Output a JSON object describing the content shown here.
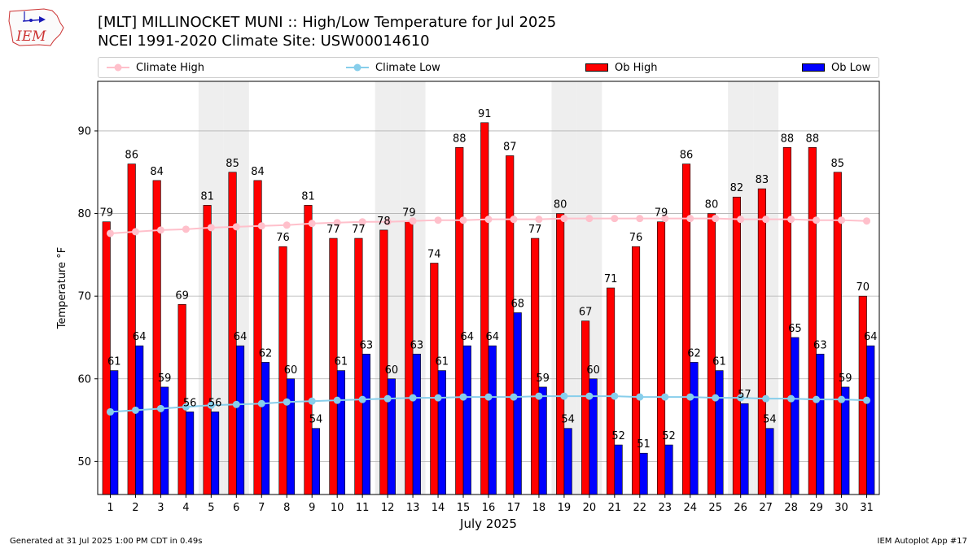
{
  "header": {
    "title_line1": "[MLT] MILLINOCKET MUNI :: High/Low Temperature for Jul 2025",
    "title_line2": "NCEI 1991-2020 Climate Site: USW00014610",
    "logo_text": "IEM"
  },
  "legend": {
    "items": [
      {
        "label": "Climate High",
        "kind": "line",
        "color": "#ffc0cb"
      },
      {
        "label": "Climate Low",
        "kind": "line",
        "color": "#87ceeb"
      },
      {
        "label": "Ob High",
        "kind": "bar",
        "color": "#ff0000"
      },
      {
        "label": "Ob Low",
        "kind": "bar",
        "color": "#0000ff"
      }
    ],
    "placement": "top"
  },
  "chart_data": {
    "type": "bar",
    "title": "[MLT] MILLINOCKET MUNI :: High/Low Temperature for Jul 2025",
    "subtitle": "NCEI 1991-2020 Climate Site: USW00014610",
    "xlabel": "July 2025",
    "ylabel": "Temperature °F",
    "categories": [
      "1",
      "2",
      "3",
      "4",
      "5",
      "6",
      "7",
      "8",
      "9",
      "10",
      "11",
      "12",
      "13",
      "14",
      "15",
      "16",
      "17",
      "18",
      "19",
      "20",
      "21",
      "22",
      "23",
      "24",
      "25",
      "26",
      "27",
      "28",
      "29",
      "30",
      "31"
    ],
    "ylim": [
      46,
      96
    ],
    "yticks": [
      50,
      60,
      70,
      80,
      90
    ],
    "grid": true,
    "weekend_shading_days": [
      5,
      6,
      12,
      13,
      19,
      20,
      26,
      27
    ],
    "series": [
      {
        "name": "Ob High",
        "kind": "bar",
        "color": "#ff0000",
        "values": [
          79,
          86,
          84,
          69,
          81,
          85,
          84,
          76,
          81,
          77,
          77,
          78,
          79,
          74,
          88,
          91,
          87,
          77,
          80,
          67,
          71,
          76,
          79,
          86,
          80,
          82,
          83,
          88,
          88,
          85,
          70
        ]
      },
      {
        "name": "Ob Low",
        "kind": "bar",
        "color": "#0000ff",
        "values": [
          61,
          64,
          59,
          56,
          56,
          64,
          62,
          60,
          54,
          61,
          63,
          60,
          63,
          61,
          64,
          64,
          68,
          59,
          54,
          60,
          52,
          51,
          52,
          62,
          61,
          57,
          54,
          65,
          63,
          59,
          64
        ]
      },
      {
        "name": "Climate High",
        "kind": "line",
        "color": "#ffc0cb",
        "values": [
          77.6,
          77.8,
          78.0,
          78.1,
          78.3,
          78.4,
          78.5,
          78.6,
          78.8,
          78.9,
          79.0,
          79.0,
          79.1,
          79.2,
          79.2,
          79.3,
          79.3,
          79.3,
          79.4,
          79.4,
          79.4,
          79.4,
          79.4,
          79.4,
          79.4,
          79.3,
          79.3,
          79.3,
          79.2,
          79.2,
          79.1
        ]
      },
      {
        "name": "Climate Low",
        "kind": "line",
        "color": "#87ceeb",
        "values": [
          56.0,
          56.2,
          56.4,
          56.6,
          56.8,
          56.9,
          57.0,
          57.2,
          57.3,
          57.4,
          57.5,
          57.6,
          57.7,
          57.7,
          57.8,
          57.8,
          57.8,
          57.9,
          57.9,
          57.9,
          57.9,
          57.8,
          57.8,
          57.8,
          57.7,
          57.7,
          57.6,
          57.6,
          57.5,
          57.5,
          57.4
        ]
      }
    ]
  },
  "footer": {
    "left": "Generated at 31 Jul 2025 1:00 PM CDT in 0.49s",
    "right": "IEM Autoplot App #17"
  }
}
